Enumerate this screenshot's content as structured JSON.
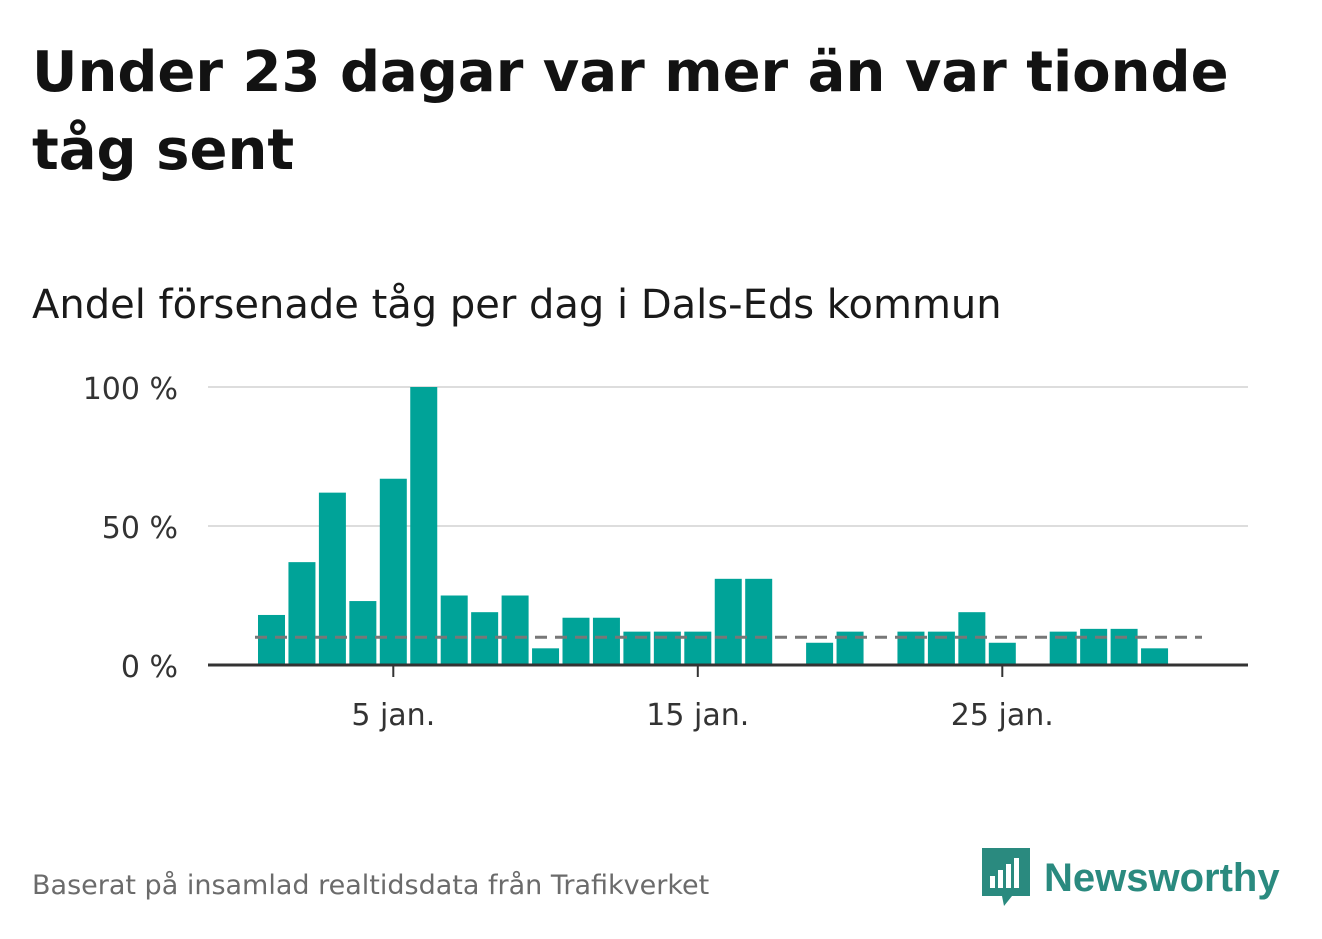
{
  "title": "Under 23 dagar var mer än var tionde tåg sent",
  "subtitle": "Andel försenade tåg per dag i Dals-Eds kommun",
  "footer": "Baserat på insamlad realtidsdata från Trafikverket",
  "brand": {
    "name": "Newsworthy",
    "icon": "newsworthy-logo-icon"
  },
  "colors": {
    "bar": "#00a398",
    "reference": "#777777",
    "grid": "#dddddd",
    "axis": "#333333",
    "brand": "#2a8a7f"
  },
  "chart_data": {
    "type": "bar",
    "title": "Andel försenade tåg per dag i Dals-Eds kommun",
    "xlabel": "",
    "ylabel": "",
    "ylim": [
      0,
      100
    ],
    "y_ticks": [
      0,
      50,
      100
    ],
    "y_tick_labels": [
      "0 %",
      "50 %",
      "100 %"
    ],
    "x_ticks": [
      5,
      15,
      25
    ],
    "x_tick_labels": [
      "5 jan.",
      "15 jan.",
      "25 jan."
    ],
    "grid": true,
    "reference_line": 10,
    "days": [
      1,
      2,
      3,
      4,
      5,
      6,
      7,
      8,
      9,
      10,
      11,
      12,
      13,
      14,
      15,
      16,
      17,
      18,
      19,
      20,
      21,
      22,
      23,
      24,
      25,
      26,
      27,
      28,
      29,
      30,
      31
    ],
    "values": [
      18,
      37,
      62,
      23,
      67,
      100,
      25,
      19,
      25,
      6,
      17,
      17,
      12,
      12,
      12,
      31,
      31,
      0,
      8,
      12,
      0,
      12,
      12,
      19,
      8,
      0,
      12,
      13,
      13,
      6,
      0
    ]
  }
}
